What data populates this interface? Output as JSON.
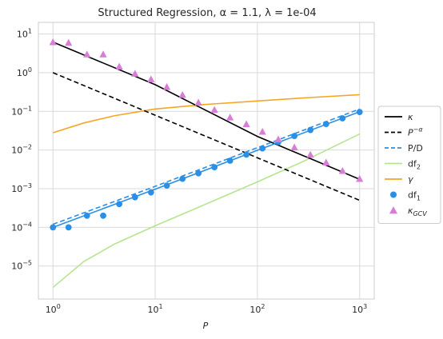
{
  "chart_data": {
    "type": "line",
    "title": "Structured Regression, α = 1.1, λ = 1e-04",
    "xlabel": "P",
    "ylabel": "",
    "xscale": "log",
    "yscale": "log",
    "xlim": [
      0.72,
      1390
    ],
    "ylim": [
      1.4e-06,
      20
    ],
    "grid": true,
    "legend_position": "outside right",
    "xticks": [
      {
        "value": 1,
        "base": "10",
        "exp": "0"
      },
      {
        "value": 10,
        "base": "10",
        "exp": "1"
      },
      {
        "value": 100,
        "base": "10",
        "exp": "2"
      },
      {
        "value": 1000,
        "base": "10",
        "exp": "3"
      }
    ],
    "yticks": [
      {
        "value": 1e-05,
        "base": "10",
        "exp": "−5"
      },
      {
        "value": 0.0001,
        "base": "10",
        "exp": "−4"
      },
      {
        "value": 0.001,
        "base": "10",
        "exp": "−3"
      },
      {
        "value": 0.01,
        "base": "10",
        "exp": "−2"
      },
      {
        "value": 0.1,
        "base": "10",
        "exp": "−1"
      },
      {
        "value": 1,
        "base": "10",
        "exp": "0"
      },
      {
        "value": 10,
        "base": "10",
        "exp": "1"
      }
    ],
    "series": [
      {
        "key": "kappa",
        "name": "κ",
        "style": "solid",
        "color": "#000000",
        "x": [
          1,
          10,
          100,
          1000
        ],
        "y": [
          6.2,
          0.49,
          0.0225,
          0.00175
        ]
      },
      {
        "key": "p_alpha",
        "name": "P^{-α}",
        "style": "dashed",
        "color": "#000000",
        "x": [
          1,
          10,
          100,
          1000
        ],
        "y": [
          1.0,
          0.0794,
          0.0063,
          0.0005
        ]
      },
      {
        "key": "p_over_d",
        "name": "P/D",
        "style": "dashed",
        "color": "#2a8fe6",
        "x": [
          1,
          10,
          100,
          1000
        ],
        "y": [
          0.00012,
          0.00115,
          0.0115,
          0.115
        ]
      },
      {
        "key": "df2",
        "name": "df_2",
        "style": "solid",
        "color": "#b5e58e",
        "x": [
          1,
          2,
          4,
          10,
          30,
          100,
          300,
          1000
        ],
        "y": [
          2.8e-06,
          1.3e-05,
          3.7e-05,
          0.00011,
          0.00038,
          0.0015,
          0.0055,
          0.026
        ]
      },
      {
        "key": "gamma",
        "name": "γ",
        "style": "solid",
        "color": "#f5a623",
        "x": [
          1,
          2,
          4,
          10,
          30,
          100,
          300,
          1000
        ],
        "y": [
          0.028,
          0.05,
          0.077,
          0.115,
          0.15,
          0.185,
          0.225,
          0.27
        ]
      },
      {
        "key": "df1_line",
        "name": "",
        "style": "solid",
        "color": "#2a8fe6",
        "x": [
          1,
          10,
          100,
          1000
        ],
        "y": [
          0.0001,
          0.00097,
          0.0098,
          0.098
        ]
      },
      {
        "key": "df1",
        "name": "df_1",
        "style": "markers-circle",
        "color": "#2a8fe6",
        "x": [
          1,
          1.42,
          2.15,
          3.1,
          4.45,
          6.35,
          9.1,
          13,
          18.5,
          26.5,
          38,
          54,
          78,
          112,
          160,
          230,
          330,
          470,
          680,
          1000
        ],
        "y": [
          0.0001,
          0.0001,
          0.0002,
          0.0002,
          0.0004,
          0.0006,
          0.0008,
          0.0012,
          0.0018,
          0.0025,
          0.0036,
          0.0053,
          0.0076,
          0.011,
          0.016,
          0.023,
          0.033,
          0.047,
          0.066,
          0.096
        ]
      },
      {
        "key": "kappa_gcv",
        "name": "κ_{GCV}",
        "style": "markers-triangle",
        "color": "#d87ed8",
        "x": [
          1,
          1.42,
          2.15,
          3.1,
          4.45,
          6.35,
          9.1,
          13,
          18.5,
          26.5,
          38,
          54,
          78,
          112,
          160,
          230,
          330,
          470,
          680,
          1000
        ],
        "y": [
          6.2,
          6.0,
          3.0,
          3.0,
          1.45,
          0.95,
          0.68,
          0.43,
          0.27,
          0.17,
          0.11,
          0.07,
          0.047,
          0.03,
          0.019,
          0.0118,
          0.0076,
          0.0048,
          0.0029,
          0.0018
        ]
      }
    ]
  }
}
